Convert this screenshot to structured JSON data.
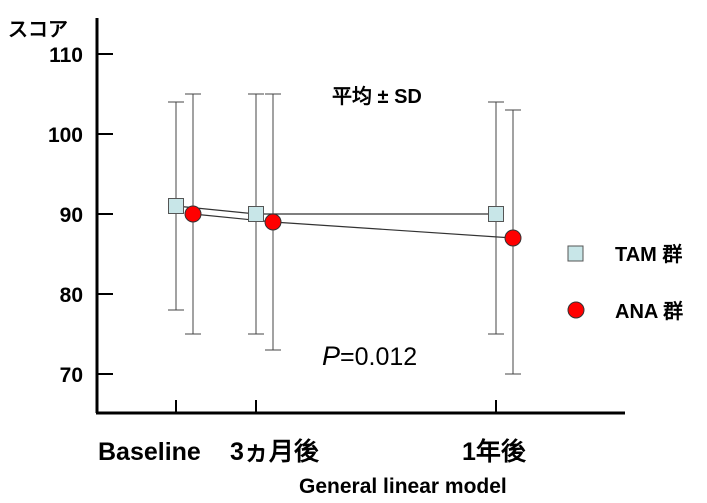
{
  "chart_data": {
    "type": "line",
    "ylabel": "スコア",
    "xlabel": "General linear model",
    "categories": [
      "Baseline",
      "3ヵ月後",
      "1年後"
    ],
    "yticks": [
      70,
      80,
      90,
      100,
      110
    ],
    "ylim": [
      65,
      115
    ],
    "grid": false,
    "legend_position": "right",
    "annotation_stats": "平均 ± SD",
    "annotation_p_symbol": "P",
    "annotation_p_value": "=0.012",
    "series": [
      {
        "name": "TAM 群",
        "marker": "square",
        "color": "#c8e6e8",
        "values": [
          91,
          90,
          90
        ],
        "sd_upper": [
          104,
          105,
          104
        ],
        "sd_lower": [
          78,
          75,
          75
        ]
      },
      {
        "name": "ANA 群",
        "marker": "circle",
        "color": "#ff0000",
        "values": [
          90,
          89,
          87
        ],
        "sd_upper": [
          105,
          105,
          103
        ],
        "sd_lower": [
          75,
          73,
          70
        ]
      }
    ]
  }
}
